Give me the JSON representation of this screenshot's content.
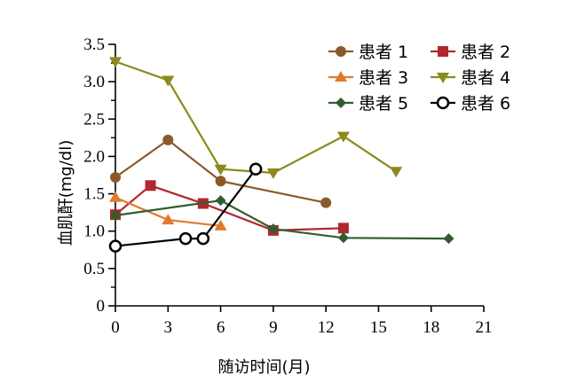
{
  "chart_data": {
    "type": "line",
    "title": "",
    "xlabel": "随访时间(月)",
    "ylabel": "血肌酐(mg/dl)",
    "xlim": [
      0,
      21
    ],
    "ylim": [
      0,
      3.5
    ],
    "xticks": [
      "0",
      "3",
      "6",
      "9",
      "12",
      "15",
      "18",
      "21"
    ],
    "yticks": [
      "0",
      "0.5",
      "1.0",
      "1.5",
      "2.0",
      "2.5",
      "3.0",
      "3.5"
    ],
    "grid": false,
    "legend_position": "top-right",
    "series": [
      {
        "name": "患者 1",
        "color": "#8B5A2B",
        "marker": "circle",
        "x": [
          0,
          3,
          6,
          12
        ],
        "y": [
          1.72,
          2.22,
          1.67,
          1.38
        ]
      },
      {
        "name": "患者 2",
        "color": "#B0282E",
        "marker": "square",
        "x": [
          0,
          2,
          5,
          9,
          13
        ],
        "y": [
          1.22,
          1.61,
          1.37,
          1.01,
          1.04
        ]
      },
      {
        "name": "患者 3",
        "color": "#E07B2E",
        "marker": "triangle-up",
        "x": [
          0,
          3,
          6
        ],
        "y": [
          1.45,
          1.15,
          1.07
        ]
      },
      {
        "name": "患者 4",
        "color": "#8C8A1C",
        "marker": "triangle-down",
        "x": [
          0,
          3,
          6,
          9,
          13,
          16
        ],
        "y": [
          3.27,
          3.02,
          1.83,
          1.78,
          2.27,
          1.8
        ]
      },
      {
        "name": "患者 5",
        "color": "#2E5E2E",
        "marker": "diamond",
        "x": [
          0,
          6,
          9,
          13,
          19
        ],
        "y": [
          1.21,
          1.41,
          1.03,
          0.91,
          0.9
        ]
      },
      {
        "name": "患者 6",
        "color": "#000000",
        "marker": "open-circle",
        "x": [
          0,
          4,
          5,
          8
        ],
        "y": [
          0.8,
          0.9,
          0.9,
          1.83
        ]
      }
    ]
  }
}
